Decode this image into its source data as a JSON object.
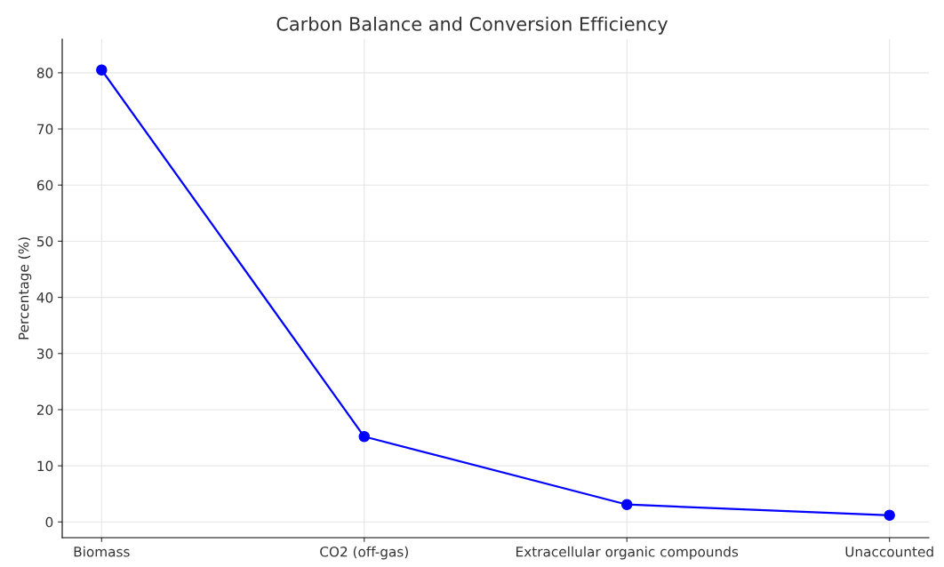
{
  "chart_data": {
    "type": "line",
    "title": "Carbon Balance and Conversion Efficiency",
    "ylabel": "Percentage (%)",
    "categories": [
      "Biomass",
      "CO2 (off-gas)",
      "Extracellular organic compounds",
      "Unaccounted"
    ],
    "series": [
      {
        "color": "#0000ff",
        "values": [
          80.5,
          15.2,
          3.1,
          1.2
        ]
      }
    ],
    "ylim": [
      -2.8,
      86
    ],
    "yticks": [
      0,
      10,
      20,
      30,
      40,
      50,
      60,
      70,
      80
    ],
    "grid": true,
    "marker": "circle",
    "line_style": "solid"
  }
}
